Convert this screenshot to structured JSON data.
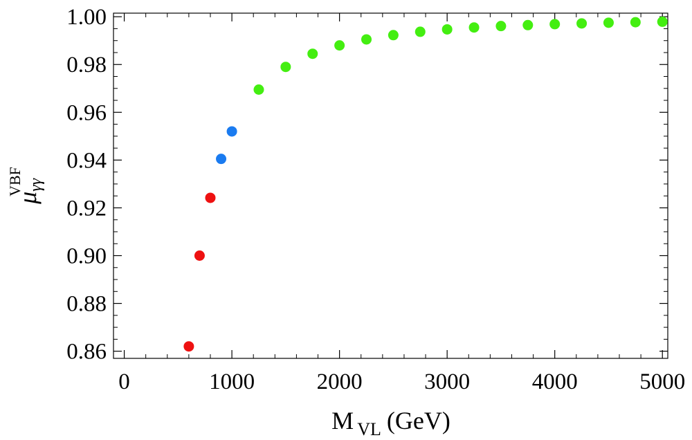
{
  "chart_data": {
    "type": "scatter",
    "title": "",
    "xlabel": {
      "main": "M",
      "subscript": "VL",
      "unit": "(GeV)"
    },
    "ylabel": {
      "main": "μ",
      "subscript": "γγ",
      "superscript": "VBF"
    },
    "xlim": [
      -100,
      5050
    ],
    "ylim": [
      0.857,
      1.0015
    ],
    "xticks": [
      0,
      1000,
      2000,
      3000,
      4000,
      5000
    ],
    "xtick_labels": [
      "0",
      "1000",
      "2000",
      "3000",
      "4000",
      "5000"
    ],
    "yticks": [
      0.86,
      0.88,
      0.9,
      0.92,
      0.94,
      0.96,
      0.98,
      1.0
    ],
    "ytick_labels": [
      "0.86",
      "0.88",
      "0.90",
      "0.92",
      "0.94",
      "0.96",
      "0.98",
      "1.00"
    ],
    "grid": false,
    "series": [
      {
        "name": "red",
        "color": "#ee1111",
        "points": [
          [
            600,
            0.862
          ],
          [
            700,
            0.9
          ],
          [
            800,
            0.9242
          ]
        ]
      },
      {
        "name": "blue",
        "color": "#1a7bf0",
        "points": [
          [
            900,
            0.9405
          ],
          [
            1000,
            0.952
          ]
        ]
      },
      {
        "name": "green",
        "color": "#44ee11",
        "points": [
          [
            1250,
            0.9695
          ],
          [
            1500,
            0.979
          ],
          [
            1750,
            0.9845
          ],
          [
            2000,
            0.988
          ],
          [
            2250,
            0.9905
          ],
          [
            2500,
            0.9923
          ],
          [
            2750,
            0.9937
          ],
          [
            3000,
            0.9947
          ],
          [
            3250,
            0.9955
          ],
          [
            3500,
            0.9961
          ],
          [
            3750,
            0.9965
          ],
          [
            4000,
            0.9969
          ],
          [
            4250,
            0.9972
          ],
          [
            4500,
            0.9975
          ],
          [
            4750,
            0.9977
          ],
          [
            5000,
            0.9979
          ]
        ]
      }
    ]
  }
}
